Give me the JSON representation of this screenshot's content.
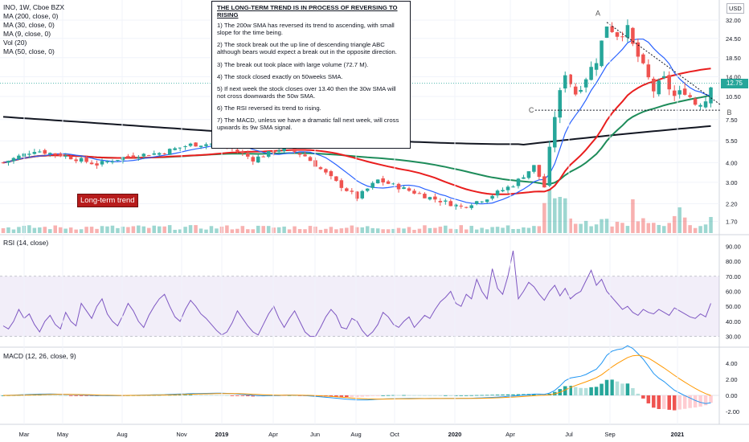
{
  "header": {
    "symbol_line": "INO, 1W, Cboe BZX",
    "indicators": [
      "MA (200, close, 0)",
      "MA (30, close, 0)",
      "MA (9, close, 0)",
      "Vol (20)",
      "MA (50, close, 0)"
    ],
    "currency": "USD",
    "last_price": "12.75"
  },
  "annotation": {
    "title": "THE LONG-TERM TREND IS IN PROCESS OF REVERSING TO RISING",
    "points": [
      "1) The 200w SMA has reversed its trend to ascending, with small slope for the time being.",
      "2) The stock break out the up line of descending triangle ABC although bears would expect a break out in the opposite direction.",
      "3) The break out took place with large volume (72.7 M).",
      "4) The stock closed exactly on 50weeks SMA.",
      "5) If next week the stock closes over 13.40 then the 30w SMA will not cross downwards the 50w SMA.",
      "6) The RSI reversed its trend to rising.",
      "7) The MACD, unless we have a dramatic fall next week, will cross upwards its 9w SMA signal."
    ],
    "badge": "Long-term trend"
  },
  "colors": {
    "up": "#26a69a",
    "down": "#ef5350",
    "sma200": "#131722",
    "sma30": "#e91e1e",
    "sma9": "#2962ff",
    "sma50": "#1e8c5a",
    "rsi": "#7e57c2",
    "macd": "#2196f3",
    "signal": "#ff9800"
  },
  "chart_data": {
    "type": "candlestick",
    "price_axis": {
      "scale": "log",
      "ticks": [
        32.0,
        24.5,
        18.5,
        14.0,
        10.5,
        7.5,
        5.5,
        4.0,
        3.0,
        2.2,
        1.7
      ]
    },
    "x_ticks": [
      "Mar",
      "May",
      "Aug",
      "Nov",
      "2019",
      "Apr",
      "Jun",
      "Aug",
      "Oct",
      "2020",
      "Apr",
      "Jul",
      "Sep",
      "2021"
    ],
    "triangle_labels": [
      "A",
      "B",
      "C"
    ],
    "last_close": 12.75,
    "rsi": {
      "label": "RSI (14, close)",
      "ticks": [
        90.0,
        80.0,
        70.0,
        60.0,
        50.0,
        40.0,
        30.0
      ],
      "band": [
        30,
        70
      ],
      "values": [
        37,
        35,
        40,
        48,
        42,
        45,
        38,
        33,
        40,
        44,
        38,
        35,
        46,
        40,
        37,
        52,
        47,
        42,
        50,
        55,
        45,
        40,
        37,
        44,
        52,
        47,
        40,
        36,
        44,
        50,
        55,
        58,
        50,
        43,
        40,
        48,
        54,
        50,
        45,
        42,
        38,
        34,
        31,
        33,
        39,
        47,
        42,
        37,
        33,
        31,
        38,
        45,
        50,
        42,
        36,
        42,
        47,
        40,
        33,
        30,
        30,
        36,
        43,
        48,
        44,
        36,
        35,
        42,
        40,
        34,
        30,
        33,
        38,
        46,
        43,
        38,
        36,
        40,
        43,
        36,
        40,
        44,
        42,
        48,
        53,
        56,
        60,
        52,
        50,
        58,
        55,
        68,
        60,
        55,
        75,
        62,
        58,
        70,
        87,
        55,
        60,
        66,
        63,
        58,
        54,
        60,
        64,
        57,
        62,
        55,
        58,
        60,
        67,
        74,
        64,
        68,
        60,
        56,
        52,
        48,
        50,
        46,
        44,
        48,
        46,
        45,
        48,
        46,
        44,
        49,
        47,
        45,
        43,
        42,
        45,
        43,
        52
      ]
    },
    "macd": {
      "label": "MACD (12, 26, close, 9)",
      "ticks": [
        4.0,
        2.0,
        0.0,
        -2.0
      ]
    }
  }
}
